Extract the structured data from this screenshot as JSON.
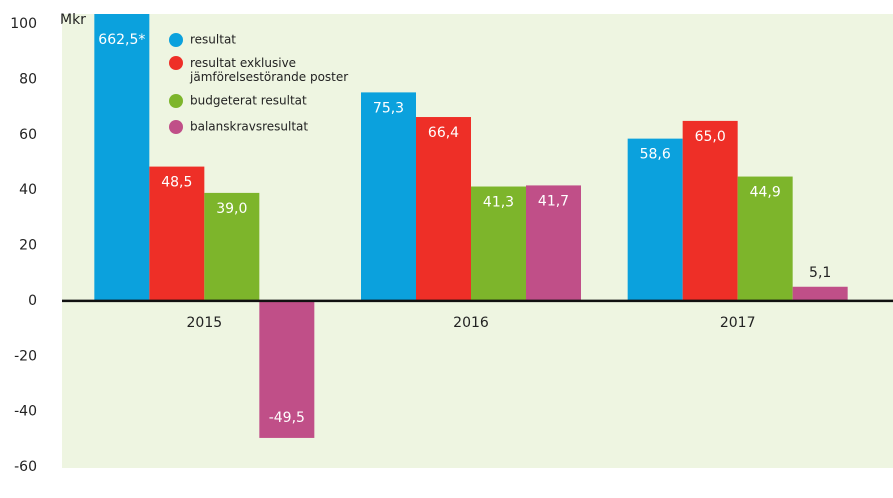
{
  "chart_data": {
    "type": "bar",
    "y_label": "Mkr",
    "categories": [
      "2015",
      "2016",
      "2017"
    ],
    "series": [
      {
        "name": "resultat",
        "color": "#0ba1dd",
        "values": [
          662.5,
          75.3,
          58.6
        ],
        "value_labels": [
          "662,5*",
          "75,3",
          "58,6"
        ]
      },
      {
        "name": "resultat exklusive jämförelsestörande poster",
        "color": "#ee2f27",
        "values": [
          48.5,
          66.4,
          65.0
        ],
        "value_labels": [
          "48,5",
          "66,4",
          "65,0"
        ]
      },
      {
        "name": "budgeterat resultat",
        "color": "#7db52b",
        "values": [
          39.0,
          41.3,
          44.9
        ],
        "value_labels": [
          "39,0",
          "41,3",
          "44,9"
        ]
      },
      {
        "name": "balanskravsresultat",
        "color": "#c04f88",
        "values": [
          -49.5,
          41.7,
          5.1
        ],
        "value_labels": [
          "-49,5",
          "41,7",
          "5,1"
        ]
      }
    ],
    "ylim": [
      -60,
      100
    ],
    "yticks": [
      -60,
      -40,
      -20,
      0,
      20,
      40,
      60,
      80,
      100
    ],
    "legend": "top-left"
  }
}
